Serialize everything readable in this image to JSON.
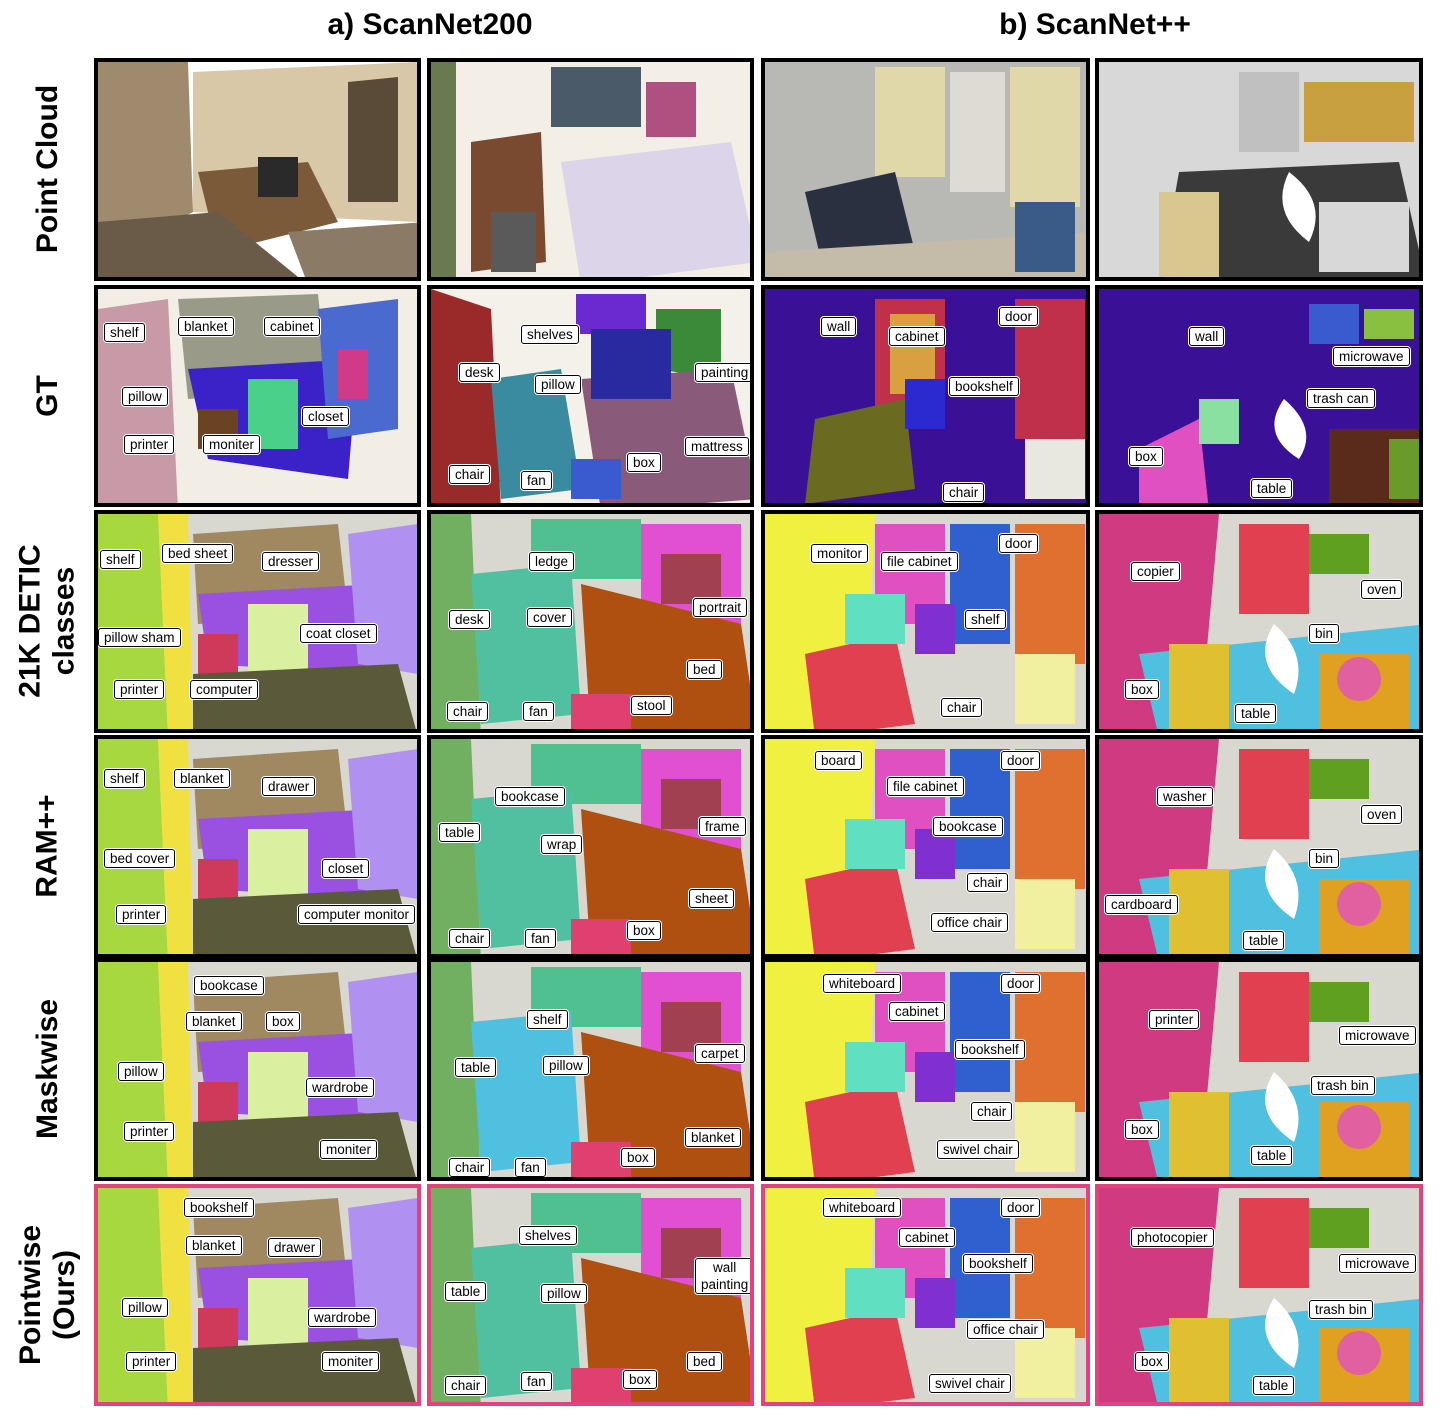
{
  "headers": {
    "a": "a) ScanNet200",
    "b": "b) ScanNet++"
  },
  "rows": [
    "Point Cloud",
    "GT",
    "21K DETIC\nclasses",
    "RAM++",
    "Maskwise",
    "Pointwise\n(Ours)"
  ],
  "labels": {
    "gt": {
      "p1": [
        "shelf",
        "blanket",
        "cabinet",
        "pillow",
        "closet",
        "printer",
        "moniter"
      ],
      "p2": [
        "shelves",
        "painting",
        "desk",
        "pillow",
        "mattress",
        "chair",
        "fan",
        "box"
      ],
      "p3": [
        "wall",
        "cabinet",
        "door",
        "bookshelf",
        "chair"
      ],
      "p4": [
        "wall",
        "microwave",
        "trash can",
        "box",
        "table"
      ]
    },
    "detic": {
      "p1": [
        "shelf",
        "bed sheet",
        "dresser",
        "pillow sham",
        "coat closet",
        "printer",
        "computer"
      ],
      "p2": [
        "ledge",
        "desk",
        "cover",
        "portrait",
        "bed",
        "chair",
        "fan",
        "stool"
      ],
      "p3": [
        "monitor",
        "file cabinet",
        "door",
        "shelf",
        "chair"
      ],
      "p4": [
        "copier",
        "oven",
        "bin",
        "box",
        "table"
      ]
    },
    "ram": {
      "p1": [
        "shelf",
        "blanket",
        "drawer",
        "bed cover",
        "closet",
        "printer",
        "computer monitor"
      ],
      "p2": [
        "bookcase",
        "table",
        "wrap",
        "frame",
        "sheet",
        "chair",
        "fan",
        "box"
      ],
      "p3": [
        "board",
        "file cabinet",
        "door",
        "bookcase",
        "chair",
        "office chair"
      ],
      "p4": [
        "washer",
        "oven",
        "bin",
        "cardboard",
        "table"
      ]
    },
    "mask": {
      "p1": [
        "bookcase",
        "blanket",
        "box",
        "pillow",
        "wardrobe",
        "printer",
        "moniter"
      ],
      "p2": [
        "shelf",
        "table",
        "pillow",
        "carpet",
        "blanket",
        "chair",
        "fan",
        "box"
      ],
      "p3": [
        "whiteboard",
        "cabinet",
        "door",
        "bookshelf",
        "chair",
        "swivel chair"
      ],
      "p4": [
        "printer",
        "microwave",
        "trash bin",
        "box",
        "table"
      ]
    },
    "ours": {
      "p1": [
        "bookshelf",
        "blanket",
        "drawer",
        "pillow",
        "wardrobe",
        "printer",
        "moniter"
      ],
      "p2": [
        "shelves",
        "table",
        "pillow",
        "wall\npainting",
        "bed",
        "chair",
        "fan",
        "box"
      ],
      "p3": [
        "whiteboard",
        "cabinet",
        "door",
        "bookshelf",
        "office chair",
        "swivel chair"
      ],
      "p4": [
        "photocopier",
        "microwave",
        "trash bin",
        "box",
        "table"
      ]
    }
  },
  "colors": {
    "ours_border": "#e2437f",
    "gt_background": "#3a1196"
  }
}
